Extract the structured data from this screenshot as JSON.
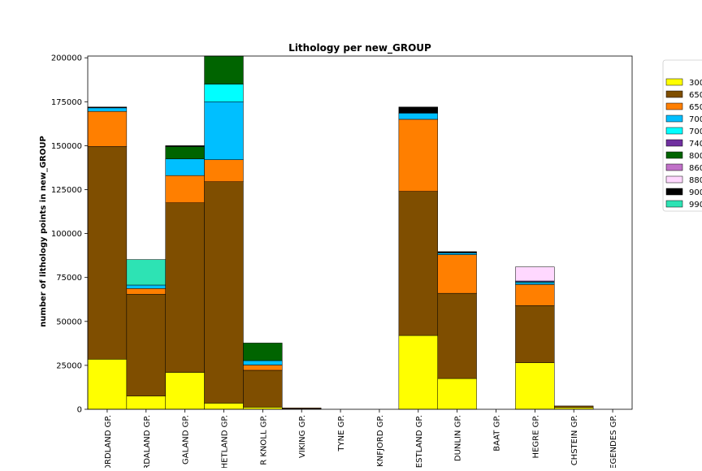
{
  "chart_data": {
    "type": "bar",
    "stacked": true,
    "title": "Lithology per new_GROUP",
    "xlabel": "",
    "ylabel": "number of lithology points in new_GROUP",
    "ylim": [
      0,
      201000
    ],
    "yticks": [
      0,
      25000,
      50000,
      75000,
      100000,
      125000,
      150000,
      175000,
      200000
    ],
    "ytick_labels": [
      "0",
      "25000",
      "50000",
      "75000",
      "100000",
      "125000",
      "150000",
      "175000",
      "200000"
    ],
    "grid": false,
    "legend_position": "right, partially cut off",
    "categories": [
      "NORDLAND GP.",
      "HORDALAND GP.",
      "ROGALAND GP.",
      "SHETLAND GP.",
      "CROMER KNOLL GP.",
      "VIKING GP.",
      "TYNE GP.",
      "BOKNFJORD GP.",
      "VESTLAND GP.",
      "DUNLIN GP.",
      "BAAT GP.",
      "HEGRE GP.",
      "ZECHSTEIN GP.",
      "ROTLIEGENDES GP."
    ],
    "category_labels_visible": [
      "ORDLAND GP.",
      "RDALAND GP.",
      "GALAND GP.",
      "HETLAND GP.",
      "R KNOLL GP.",
      "VIKING GP.",
      "TYNE GP.",
      "KNFJORD GP.",
      "ESTLAND GP.",
      "DUNLIN GP.",
      "BAAT GP.",
      "HEGRE GP.",
      "CHSTEIN GP.",
      "EGENDES GP."
    ],
    "series": [
      {
        "name": "300",
        "color": "#ffff00",
        "values": [
          28500,
          7500,
          21000,
          3500,
          1200,
          300,
          0,
          0,
          42000,
          17500,
          0,
          26500,
          1000,
          0
        ]
      },
      {
        "name": "650",
        "color": "#7f4e00",
        "values": [
          121000,
          58000,
          96500,
          126000,
          21000,
          500,
          0,
          0,
          82000,
          48500,
          0,
          32500,
          900,
          0
        ]
      },
      {
        "name": "650",
        "color": "#ff7f00",
        "values": [
          20000,
          3200,
          15500,
          12500,
          3000,
          0,
          0,
          0,
          41000,
          22000,
          0,
          12000,
          0,
          0
        ]
      },
      {
        "name": "700",
        "color": "#00bfff",
        "values": [
          2000,
          2000,
          9500,
          33000,
          2500,
          0,
          0,
          0,
          3500,
          1000,
          0,
          1000,
          0,
          0
        ]
      },
      {
        "name": "700",
        "color": "#00ffff",
        "values": [
          0,
          0,
          0,
          10000,
          0,
          0,
          0,
          0,
          0,
          0,
          0,
          500,
          0,
          0
        ]
      },
      {
        "name": "740",
        "color": "#7030a0",
        "values": [
          0,
          0,
          0,
          0,
          0,
          0,
          0,
          0,
          0,
          0,
          0,
          500,
          0,
          0
        ]
      },
      {
        "name": "800",
        "color": "#006400",
        "values": [
          0,
          0,
          7000,
          16000,
          10000,
          0,
          0,
          0,
          0,
          0,
          0,
          0,
          0,
          0
        ]
      },
      {
        "name": "860",
        "color": "#c071c8",
        "values": [
          0,
          0,
          0,
          0,
          0,
          0,
          0,
          0,
          0,
          0,
          0,
          0,
          0,
          0
        ]
      },
      {
        "name": "880",
        "color": "#ffd8ff",
        "values": [
          0,
          0,
          0,
          0,
          0,
          0,
          0,
          0,
          0,
          0,
          0,
          8000,
          0,
          0
        ]
      },
      {
        "name": "900",
        "color": "#000000",
        "values": [
          500,
          0,
          500,
          0,
          0,
          0,
          0,
          0,
          3500,
          700,
          0,
          0,
          0,
          0
        ]
      },
      {
        "name": "990",
        "color": "#2de3b4",
        "values": [
          0,
          14500,
          0,
          0,
          0,
          0,
          0,
          0,
          0,
          0,
          0,
          0,
          0,
          0
        ]
      }
    ]
  }
}
